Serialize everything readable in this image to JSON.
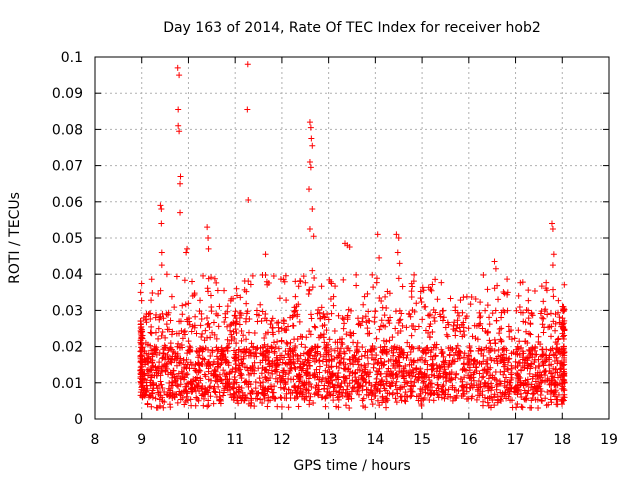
{
  "chart_data": {
    "type": "scatter",
    "title": "Day 163 of 2014, Rate Of TEC Index for receiver hob2",
    "xlabel": "GPS time / hours",
    "ylabel": "ROTI / TECUs",
    "xlim": [
      8,
      19
    ],
    "ylim": [
      0,
      0.1
    ],
    "xticks": [
      "8",
      "9",
      "10",
      "11",
      "12",
      "13",
      "14",
      "15",
      "16",
      "17",
      "18",
      "19"
    ],
    "yticks": [
      "0",
      "0.01",
      "0.02",
      "0.03",
      "0.04",
      "0.05",
      "0.06",
      "0.07",
      "0.08",
      "0.09",
      "0.1"
    ],
    "grid": true,
    "marker": "+",
    "series_color": "#ff0000",
    "x_range_of_data": [
      8.97,
      18.05
    ],
    "dense_band": {
      "low": 0.003,
      "high": 0.03
    },
    "notable_points": [
      {
        "x": 9.77,
        "y": 0.097
      },
      {
        "x": 9.8,
        "y": 0.095
      },
      {
        "x": 9.78,
        "y": 0.0855
      },
      {
        "x": 9.78,
        "y": 0.081
      },
      {
        "x": 9.8,
        "y": 0.0795
      },
      {
        "x": 9.83,
        "y": 0.067
      },
      {
        "x": 9.82,
        "y": 0.065
      },
      {
        "x": 9.82,
        "y": 0.057
      },
      {
        "x": 9.4,
        "y": 0.059
      },
      {
        "x": 9.42,
        "y": 0.058
      },
      {
        "x": 9.42,
        "y": 0.054
      },
      {
        "x": 9.43,
        "y": 0.046
      },
      {
        "x": 9.43,
        "y": 0.0425
      },
      {
        "x": 9.97,
        "y": 0.047
      },
      {
        "x": 9.95,
        "y": 0.046
      },
      {
        "x": 10.4,
        "y": 0.053
      },
      {
        "x": 10.42,
        "y": 0.05
      },
      {
        "x": 10.43,
        "y": 0.047
      },
      {
        "x": 11.27,
        "y": 0.098
      },
      {
        "x": 11.26,
        "y": 0.0855
      },
      {
        "x": 11.28,
        "y": 0.0605
      },
      {
        "x": 11.65,
        "y": 0.0455
      },
      {
        "x": 12.6,
        "y": 0.082
      },
      {
        "x": 12.62,
        "y": 0.0805
      },
      {
        "x": 12.63,
        "y": 0.0775
      },
      {
        "x": 12.65,
        "y": 0.0755
      },
      {
        "x": 12.6,
        "y": 0.071
      },
      {
        "x": 12.62,
        "y": 0.0695
      },
      {
        "x": 12.58,
        "y": 0.0635
      },
      {
        "x": 12.65,
        "y": 0.058
      },
      {
        "x": 12.6,
        "y": 0.0525
      },
      {
        "x": 12.68,
        "y": 0.0505
      },
      {
        "x": 12.65,
        "y": 0.041
      },
      {
        "x": 13.35,
        "y": 0.0485
      },
      {
        "x": 13.4,
        "y": 0.048
      },
      {
        "x": 13.45,
        "y": 0.0475
      },
      {
        "x": 14.05,
        "y": 0.051
      },
      {
        "x": 14.08,
        "y": 0.0445
      },
      {
        "x": 14.45,
        "y": 0.051
      },
      {
        "x": 14.5,
        "y": 0.05
      },
      {
        "x": 14.48,
        "y": 0.046
      },
      {
        "x": 14.52,
        "y": 0.043
      },
      {
        "x": 16.55,
        "y": 0.0435
      },
      {
        "x": 16.58,
        "y": 0.0415
      },
      {
        "x": 17.78,
        "y": 0.054
      },
      {
        "x": 17.8,
        "y": 0.0525
      },
      {
        "x": 17.82,
        "y": 0.0455
      },
      {
        "x": 17.8,
        "y": 0.0425
      }
    ]
  }
}
